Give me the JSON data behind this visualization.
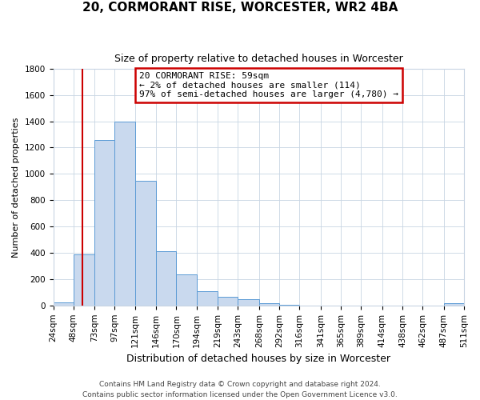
{
  "title": "20, CORMORANT RISE, WORCESTER, WR2 4BA",
  "subtitle": "Size of property relative to detached houses in Worcester",
  "xlabel": "Distribution of detached houses by size in Worcester",
  "ylabel": "Number of detached properties",
  "bin_edges": [
    24,
    48,
    73,
    97,
    121,
    146,
    170,
    194,
    219,
    243,
    268,
    292,
    316,
    341,
    365,
    389,
    414,
    438,
    462,
    487,
    511
  ],
  "bin_heights": [
    25,
    390,
    1255,
    1395,
    950,
    415,
    235,
    110,
    65,
    50,
    15,
    5,
    0,
    0,
    0,
    0,
    0,
    0,
    0,
    15
  ],
  "bar_color": "#c9d9ee",
  "bar_edge_color": "#5b9bd5",
  "vline_x": 59,
  "vline_color": "#cc0000",
  "ylim": [
    0,
    1800
  ],
  "yticks": [
    0,
    200,
    400,
    600,
    800,
    1000,
    1200,
    1400,
    1600,
    1800
  ],
  "annotation_text": "20 CORMORANT RISE: 59sqm\n← 2% of detached houses are smaller (114)\n97% of semi-detached houses are larger (4,780) →",
  "annotation_box_color": "#ffffff",
  "annotation_box_edge_color": "#cc0000",
  "footer_line1": "Contains HM Land Registry data © Crown copyright and database right 2024.",
  "footer_line2": "Contains public sector information licensed under the Open Government Licence v3.0.",
  "background_color": "#ffffff",
  "grid_color": "#c8d4e3",
  "title_fontsize": 11,
  "subtitle_fontsize": 9,
  "ylabel_fontsize": 8,
  "xlabel_fontsize": 9,
  "tick_fontsize": 7.5,
  "footer_fontsize": 6.5
}
